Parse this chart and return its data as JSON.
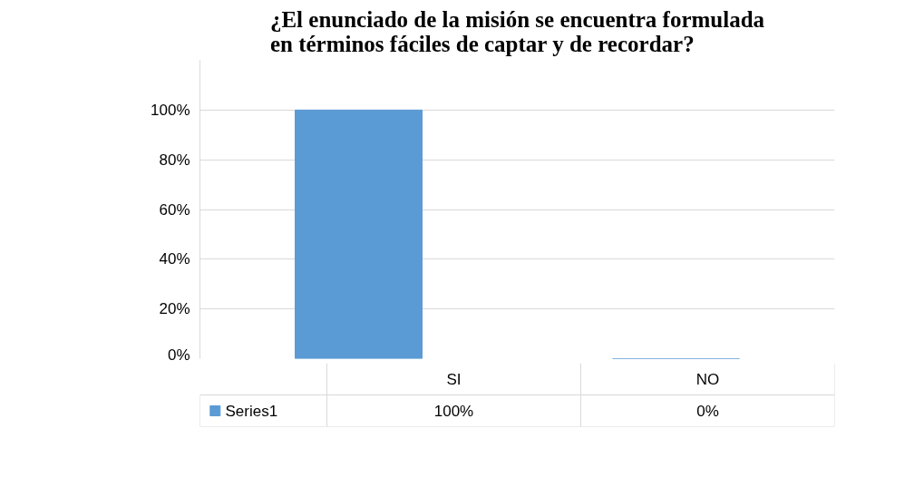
{
  "chart_data": {
    "type": "bar",
    "title": "¿El enunciado de la misión se encuentra formulada en términos fáciles de captar y de recordar?",
    "categories": [
      "SI",
      "NO"
    ],
    "series": [
      {
        "name": "Series1",
        "color": "#5b9bd5",
        "values": [
          100,
          0
        ],
        "value_labels": [
          "100%",
          "0%"
        ]
      }
    ],
    "ylim": [
      0,
      120
    ],
    "yticks": [
      {
        "value": 0,
        "label": "0%"
      },
      {
        "value": 20,
        "label": "20%"
      },
      {
        "value": 40,
        "label": "40%"
      },
      {
        "value": 60,
        "label": "60%"
      },
      {
        "value": 80,
        "label": "80%"
      },
      {
        "value": 100,
        "label": "100%"
      }
    ],
    "grid": "y"
  }
}
